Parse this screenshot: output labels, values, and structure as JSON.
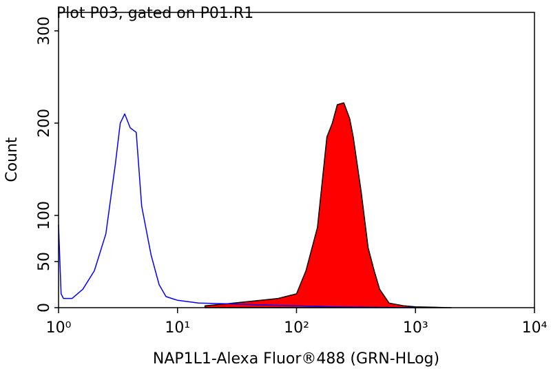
{
  "chart_data": {
    "type": "histogram-overlay",
    "title": "Plot P03, gated on P01.R1",
    "x_label": "NAP1L1-Alexa Fluor®488 (GRN-HLog)",
    "y_label": "Count",
    "x_scale": "log",
    "xlim": [
      1,
      10000
    ],
    "xticks": [
      {
        "value": 1,
        "label": "10⁰"
      },
      {
        "value": 10,
        "label": "10¹"
      },
      {
        "value": 100,
        "label": "10²"
      },
      {
        "value": 1000,
        "label": "10³"
      },
      {
        "value": 10000,
        "label": "10⁴"
      }
    ],
    "ylim": [
      0,
      320
    ],
    "yticks": [
      0,
      50,
      100,
      200,
      300
    ],
    "series": [
      {
        "color": "#ff0000",
        "edge_color": "#000000",
        "filled": true,
        "x": [
          17,
          25,
          35,
          50,
          70,
          100,
          120,
          150,
          180,
          200,
          220,
          250,
          280,
          300,
          350,
          400,
          450,
          500,
          600,
          800,
          1000,
          2000
        ],
        "values": [
          2,
          4,
          6,
          8,
          10,
          15,
          40,
          87,
          185,
          200,
          220,
          222,
          205,
          185,
          125,
          65,
          40,
          20,
          5,
          2,
          1,
          0
        ]
      },
      {
        "color": "#0000ff",
        "filled": false,
        "x": [
          1,
          1.05,
          1.1,
          1.3,
          1.6,
          2,
          2.5,
          3,
          3.3,
          3.6,
          4,
          4.5,
          5,
          6,
          7,
          8,
          10,
          15,
          30,
          50,
          100,
          200,
          1000
        ],
        "values": [
          90,
          15,
          10,
          10,
          20,
          40,
          80,
          155,
          200,
          210,
          195,
          190,
          110,
          57,
          25,
          12,
          8,
          5,
          4,
          3,
          2,
          1,
          0
        ]
      }
    ]
  }
}
